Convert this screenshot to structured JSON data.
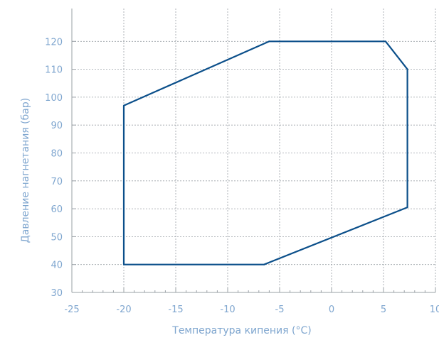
{
  "chart_data": {
    "type": "line",
    "title": "",
    "xlabel": "Температура кипения (°C)",
    "ylabel": "Давление нагнетания (бар)",
    "xlim": [
      -25,
      10
    ],
    "ylim": [
      30,
      130
    ],
    "x_ticks": [
      -25,
      -20,
      -15,
      -10,
      -5,
      0,
      5,
      10
    ],
    "x_tick_labels": [
      "-25",
      "-20",
      "-15",
      "-10",
      "-5",
      "0",
      "5",
      "10"
    ],
    "y_ticks": [
      30,
      40,
      50,
      60,
      70,
      80,
      90,
      100,
      110,
      120
    ],
    "y_tick_labels": [
      "30",
      "40",
      "50",
      "60",
      "70",
      "80",
      "90",
      "100",
      "110",
      "120"
    ],
    "grid": true,
    "series": [
      {
        "closed": true,
        "x": [
          -20,
          -20,
          -6.5,
          7.3,
          7.3,
          5.2,
          -6,
          -20
        ],
        "y": [
          97,
          40,
          40,
          60.5,
          110,
          120,
          120,
          97
        ]
      }
    ],
    "colors": {
      "line": "#0b4f8a",
      "text": "#7fa6cf",
      "axis": "#9aa0a6",
      "grid": "#9aa0a6"
    }
  }
}
